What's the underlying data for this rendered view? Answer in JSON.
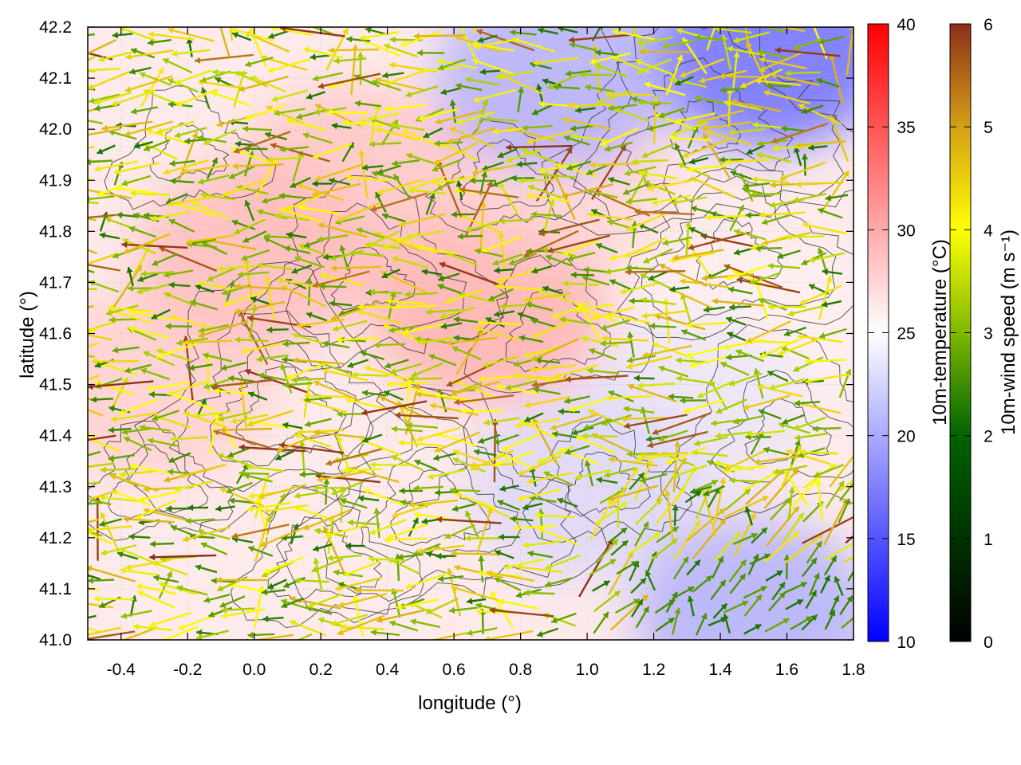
{
  "chart_data": {
    "type": "vector-field",
    "xlabel": "longitude (°)",
    "ylabel": "latitude (°)",
    "xlim": [
      -0.5,
      1.8
    ],
    "ylim": [
      41.0,
      42.2
    ],
    "x_ticks": [
      "-0.4",
      "-0.2",
      "0.0",
      "0.2",
      "0.4",
      "0.6",
      "0.8",
      "1.0",
      "1.2",
      "1.4",
      "1.6",
      "1.8"
    ],
    "y_ticks": [
      "41.0",
      "41.1",
      "41.2",
      "41.3",
      "41.4",
      "41.5",
      "41.6",
      "41.7",
      "41.8",
      "41.9",
      "42.0",
      "42.1",
      "42.2"
    ],
    "grid": true,
    "temperature_colorbar": {
      "label": "10m-temperature (°C)",
      "range": [
        10,
        40
      ],
      "ticks": [
        "10",
        "15",
        "20",
        "25",
        "30",
        "35",
        "40"
      ],
      "colors": [
        "#0000ff",
        "#ffffff",
        "#ff0000"
      ]
    },
    "wind_colorbar": {
      "label": "10m-wind speed (m s⁻¹)",
      "range": [
        0,
        6
      ],
      "ticks": [
        "0",
        "1",
        "2",
        "3",
        "4",
        "5",
        "6"
      ],
      "colors": [
        "#000000",
        "#006400",
        "#7fb800",
        "#ffff00",
        "#d4a017",
        "#8b2e1a"
      ]
    },
    "temperature_regions": [
      {
        "lon": 0.0,
        "lat": 41.75,
        "temp": 29.5
      },
      {
        "lon": 0.7,
        "lat": 41.65,
        "temp": 30
      },
      {
        "lon": -0.3,
        "lat": 41.5,
        "temp": 28.5
      },
      {
        "lon": 0.3,
        "lat": 41.9,
        "temp": 29
      },
      {
        "lon": 0.9,
        "lat": 41.9,
        "temp": 28
      },
      {
        "lon": 1.0,
        "lat": 41.3,
        "temp": 22
      },
      {
        "lon": 1.5,
        "lat": 41.05,
        "temp": 20
      },
      {
        "lon": 1.55,
        "lat": 42.15,
        "temp": 17
      },
      {
        "lon": 0.9,
        "lat": 42.1,
        "temp": 20
      },
      {
        "lon": 1.5,
        "lat": 41.6,
        "temp": 25
      },
      {
        "lon": 1.3,
        "lat": 41.45,
        "temp": 23
      }
    ],
    "wind_field": {
      "dominant_direction": "westward",
      "typical_speed": 3,
      "max_speed": 6
    }
  }
}
